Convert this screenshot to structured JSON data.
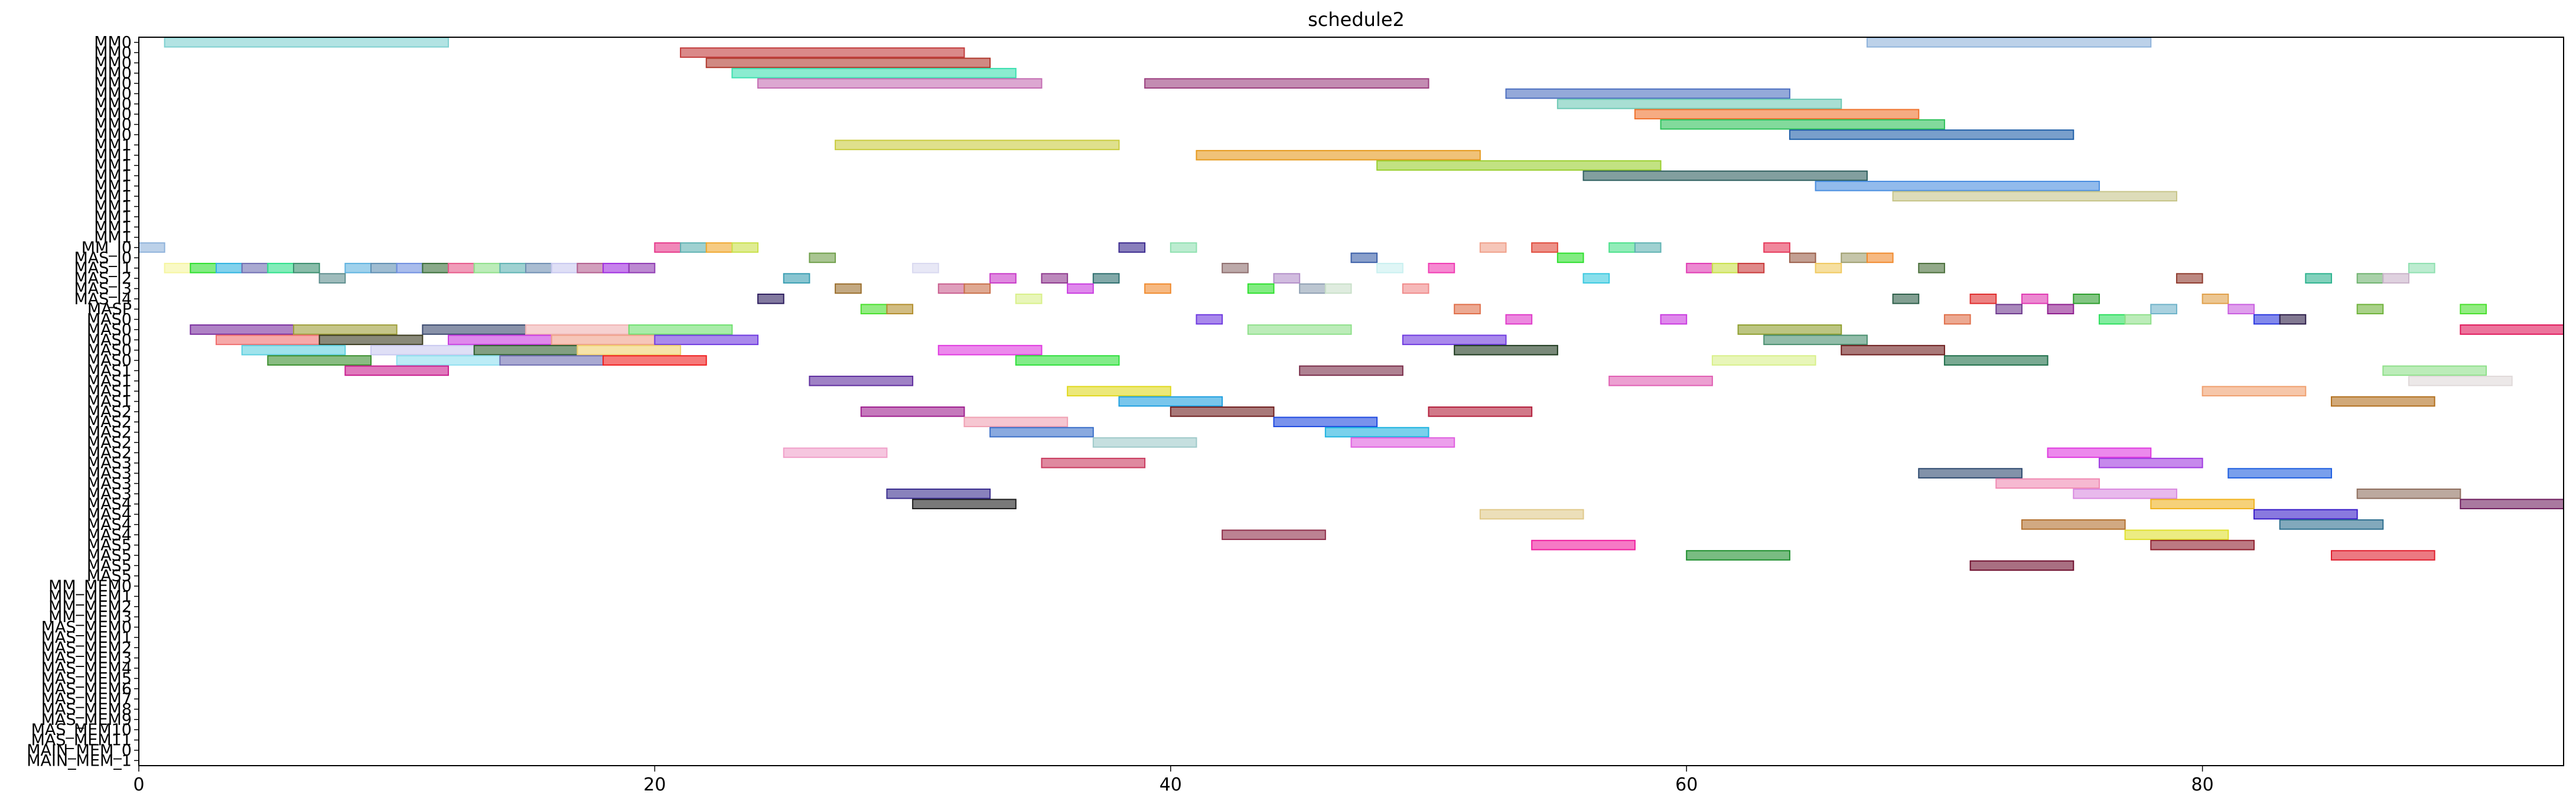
{
  "chart_data": {
    "type": "gantt",
    "title": "schedule2",
    "xlim": [
      0,
      94
    ],
    "xticks": [
      0,
      20,
      40,
      60,
      80
    ],
    "grid": false,
    "rows": [
      "MM0",
      "MM0",
      "MM0",
      "MM0",
      "MM0",
      "MM0",
      "MM0",
      "MM0",
      "MM0",
      "MM0",
      "MM1",
      "MM1",
      "MM1",
      "MM1",
      "MM1",
      "MM1",
      "MM1",
      "MM1",
      "MM1",
      "MM1",
      "MM_I0",
      "MAS_I0",
      "MAS_I1",
      "MAS_I2",
      "MAS_I3",
      "MAS_I4",
      "MASP",
      "MAS0",
      "MAS0",
      "MAS0",
      "MAS0",
      "MAS0",
      "MAS1",
      "MAS1",
      "MAS1",
      "MAS1",
      "MAS2",
      "MAS2",
      "MAS2",
      "MAS2",
      "MAS2",
      "MAS3",
      "MAS3",
      "MAS3",
      "MAS3",
      "MAS4",
      "MAS4",
      "MAS4",
      "MAS4",
      "MAS5",
      "MAS5",
      "MAS5",
      "MAS5",
      "MM_MEM0",
      "MM_MEM1",
      "MM_MEM2",
      "MM_MEM3",
      "MAS_MEM0",
      "MAS_MEM1",
      "MAS_MEM2",
      "MAS_MEM3",
      "MAS_MEM4",
      "MAS_MEM5",
      "MAS_MEM6",
      "MAS_MEM7",
      "MAS_MEM8",
      "MAS_MEM9",
      "MAS_MEM10",
      "MAS_MEM11",
      "MAIN_MEM_0",
      "MAIN_MEM_1"
    ],
    "tasks": [
      {
        "row": 0,
        "start": 1,
        "end": 12,
        "color": "#7fd0d0"
      },
      {
        "row": 0,
        "start": 67,
        "end": 78,
        "color": "#8fb3db"
      },
      {
        "row": 1,
        "start": 21,
        "end": 32,
        "color": "#c23b3b"
      },
      {
        "row": 2,
        "start": 22,
        "end": 33,
        "color": "#b03a2e"
      },
      {
        "row": 3,
        "start": 23,
        "end": 34,
        "color": "#3de0b0"
      },
      {
        "row": 4,
        "start": 24,
        "end": 35,
        "color": "#c46db3"
      },
      {
        "row": 4,
        "start": 39,
        "end": 50,
        "color": "#9b3f7f"
      },
      {
        "row": 5,
        "start": 53,
        "end": 64,
        "color": "#4d6fc0"
      },
      {
        "row": 6,
        "start": 55,
        "end": 66,
        "color": "#6ec9b5"
      },
      {
        "row": 7,
        "start": 58,
        "end": 69,
        "color": "#f0732e"
      },
      {
        "row": 8,
        "start": 59,
        "end": 70,
        "color": "#2ec25a"
      },
      {
        "row": 9,
        "start": 64,
        "end": 75,
        "color": "#1f5fa8"
      },
      {
        "row": 10,
        "start": 27,
        "end": 38,
        "color": "#c9cc3f"
      },
      {
        "row": 11,
        "start": 41,
        "end": 52,
        "color": "#e69a1e"
      },
      {
        "row": 12,
        "start": 48,
        "end": 59,
        "color": "#9acf2e"
      },
      {
        "row": 13,
        "start": 56,
        "end": 67,
        "color": "#2f5f5f"
      },
      {
        "row": 14,
        "start": 65,
        "end": 76,
        "color": "#4a8ee0"
      },
      {
        "row": 15,
        "start": 68,
        "end": 79,
        "color": "#c7c58a"
      },
      {
        "row": 20,
        "start": 0,
        "end": 1,
        "color": "#8fb3db"
      },
      {
        "row": 20,
        "start": 20,
        "end": 21,
        "color": "#e6388a"
      },
      {
        "row": 20,
        "start": 21,
        "end": 22,
        "color": "#5fb3b3"
      },
      {
        "row": 20,
        "start": 22,
        "end": 23,
        "color": "#f0a830"
      },
      {
        "row": 20,
        "start": 23,
        "end": 24,
        "color": "#c9e04a"
      },
      {
        "row": 20,
        "start": 38,
        "end": 39,
        "color": "#3b2a8f"
      },
      {
        "row": 20,
        "start": 40,
        "end": 41,
        "color": "#8fe0b0"
      },
      {
        "row": 20,
        "start": 52,
        "end": 53,
        "color": "#f0a08a"
      },
      {
        "row": 20,
        "start": 54,
        "end": 55,
        "color": "#e04a3b"
      },
      {
        "row": 20,
        "start": 57,
        "end": 58,
        "color": "#4ae08a"
      },
      {
        "row": 20,
        "start": 58,
        "end": 59,
        "color": "#5fb3b3"
      },
      {
        "row": 20,
        "start": 63,
        "end": 64,
        "color": "#e6385a"
      },
      {
        "row": 21,
        "start": 26,
        "end": 27,
        "color": "#6f9f4a"
      },
      {
        "row": 21,
        "start": 47,
        "end": 48,
        "color": "#3b5fa8"
      },
      {
        "row": 21,
        "start": 55,
        "end": 56,
        "color": "#2ee02e"
      },
      {
        "row": 21,
        "start": 64,
        "end": 65,
        "color": "#9b5f4a"
      },
      {
        "row": 21,
        "start": 66,
        "end": 67,
        "color": "#9f9f6f"
      },
      {
        "row": 21,
        "start": 67,
        "end": 68,
        "color": "#f08a2e"
      },
      {
        "row": 22,
        "start": 1,
        "end": 2,
        "color": "#f5f59f"
      },
      {
        "row": 22,
        "start": 2,
        "end": 3,
        "color": "#2ee02e"
      },
      {
        "row": 22,
        "start": 3,
        "end": 4,
        "color": "#2eb3e0"
      },
      {
        "row": 22,
        "start": 4,
        "end": 5,
        "color": "#6f6fb3"
      },
      {
        "row": 22,
        "start": 5,
        "end": 6,
        "color": "#2ee08a"
      },
      {
        "row": 22,
        "start": 6,
        "end": 7,
        "color": "#3b8f6f"
      },
      {
        "row": 22,
        "start": 8,
        "end": 9,
        "color": "#5fb3e0"
      },
      {
        "row": 22,
        "start": 9,
        "end": 10,
        "color": "#5f8fb3"
      },
      {
        "row": 22,
        "start": 10,
        "end": 11,
        "color": "#6f8fe0"
      },
      {
        "row": 22,
        "start": 11,
        "end": 12,
        "color": "#3b6f3b"
      },
      {
        "row": 22,
        "start": 12,
        "end": 13,
        "color": "#e65a8a"
      },
      {
        "row": 22,
        "start": 13,
        "end": 14,
        "color": "#8fe08a"
      },
      {
        "row": 22,
        "start": 14,
        "end": 15,
        "color": "#5fb3b3"
      },
      {
        "row": 22,
        "start": 15,
        "end": 16,
        "color": "#6f8fb3"
      },
      {
        "row": 22,
        "start": 16,
        "end": 17,
        "color": "#c9c9f0"
      },
      {
        "row": 22,
        "start": 17,
        "end": 18,
        "color": "#b35f8f"
      },
      {
        "row": 22,
        "start": 18,
        "end": 19,
        "color": "#a02ee0"
      },
      {
        "row": 22,
        "start": 19,
        "end": 20,
        "color": "#8f3bb3"
      },
      {
        "row": 22,
        "start": 30,
        "end": 31,
        "color": "#d9d9f0"
      },
      {
        "row": 22,
        "start": 42,
        "end": 43,
        "color": "#8f6f6f"
      },
      {
        "row": 22,
        "start": 48,
        "end": 49,
        "color": "#c9f0f0"
      },
      {
        "row": 22,
        "start": 50,
        "end": 51,
        "color": "#f03bb3"
      },
      {
        "row": 22,
        "start": 60,
        "end": 61,
        "color": "#e03bb3"
      },
      {
        "row": 22,
        "start": 61,
        "end": 62,
        "color": "#c9e04a"
      },
      {
        "row": 22,
        "start": 62,
        "end": 63,
        "color": "#c93b3b"
      },
      {
        "row": 22,
        "start": 65,
        "end": 66,
        "color": "#f0c95f"
      },
      {
        "row": 22,
        "start": 69,
        "end": 70,
        "color": "#4a6f3b"
      },
      {
        "row": 22,
        "start": 88,
        "end": 89,
        "color": "#8fe0b0"
      },
      {
        "row": 23,
        "start": 7,
        "end": 8,
        "color": "#5f8f8f"
      },
      {
        "row": 23,
        "start": 25,
        "end": 26,
        "color": "#3b9fb3"
      },
      {
        "row": 23,
        "start": 33,
        "end": 34,
        "color": "#c93bc9"
      },
      {
        "row": 23,
        "start": 35,
        "end": 36,
        "color": "#8f3b8f"
      },
      {
        "row": 23,
        "start": 37,
        "end": 38,
        "color": "#2e6f6f"
      },
      {
        "row": 23,
        "start": 44,
        "end": 45,
        "color": "#b38fc9"
      },
      {
        "row": 23,
        "start": 56,
        "end": 57,
        "color": "#3bc9e0"
      },
      {
        "row": 23,
        "start": 79,
        "end": 80,
        "color": "#8f3b2e"
      },
      {
        "row": 23,
        "start": 84,
        "end": 85,
        "color": "#2eb38f"
      },
      {
        "row": 23,
        "start": 86,
        "end": 87,
        "color": "#6fb36f"
      },
      {
        "row": 23,
        "start": 87,
        "end": 88,
        "color": "#c9b3c9"
      },
      {
        "row": 24,
        "start": 27,
        "end": 28,
        "color": "#9b6f2e"
      },
      {
        "row": 24,
        "start": 31,
        "end": 32,
        "color": "#c95f8f"
      },
      {
        "row": 24,
        "start": 32,
        "end": 33,
        "color": "#c96f4a"
      },
      {
        "row": 24,
        "start": 36,
        "end": 37,
        "color": "#c93be0"
      },
      {
        "row": 24,
        "start": 39,
        "end": 40,
        "color": "#f08a2e"
      },
      {
        "row": 24,
        "start": 43,
        "end": 44,
        "color": "#2ee02e"
      },
      {
        "row": 24,
        "start": 45,
        "end": 46,
        "color": "#8fa0b3"
      },
      {
        "row": 24,
        "start": 46,
        "end": 47,
        "color": "#c9e0c9"
      },
      {
        "row": 24,
        "start": 49,
        "end": 50,
        "color": "#f08a8a"
      },
      {
        "row": 25,
        "start": 24,
        "end": 25,
        "color": "#2e1f5f"
      },
      {
        "row": 25,
        "start": 34,
        "end": 35,
        "color": "#d9f08a"
      },
      {
        "row": 25,
        "start": 68,
        "end": 69,
        "color": "#2e5f4a"
      },
      {
        "row": 25,
        "start": 71,
        "end": 72,
        "color": "#e02e2e"
      },
      {
        "row": 25,
        "start": 73,
        "end": 74,
        "color": "#e03bb3"
      },
      {
        "row": 25,
        "start": 75,
        "end": 76,
        "color": "#2e9f2e"
      },
      {
        "row": 25,
        "start": 80,
        "end": 81,
        "color": "#e0a04a"
      },
      {
        "row": 26,
        "start": 28,
        "end": 29,
        "color": "#4ae02e"
      },
      {
        "row": 26,
        "start": 29,
        "end": 30,
        "color": "#b38f2e"
      },
      {
        "row": 26,
        "start": 51,
        "end": 52,
        "color": "#e06f4a"
      },
      {
        "row": 26,
        "start": 72,
        "end": 73,
        "color": "#6f3b8f"
      },
      {
        "row": 26,
        "start": 74,
        "end": 75,
        "color": "#8f1f8f"
      },
      {
        "row": 26,
        "start": 78,
        "end": 79,
        "color": "#6fb3c9"
      },
      {
        "row": 26,
        "start": 81,
        "end": 82,
        "color": "#c95fe0"
      },
      {
        "row": 26,
        "start": 86,
        "end": 87,
        "color": "#6fb33b"
      },
      {
        "row": 26,
        "start": 90,
        "end": 91,
        "color": "#4ae02e"
      },
      {
        "row": 27,
        "start": 41,
        "end": 42,
        "color": "#6f3be0"
      },
      {
        "row": 27,
        "start": 53,
        "end": 54,
        "color": "#e03bc9"
      },
      {
        "row": 27,
        "start": 59,
        "end": 60,
        "color": "#c93be0"
      },
      {
        "row": 27,
        "start": 70,
        "end": 71,
        "color": "#e06f4a"
      },
      {
        "row": 27,
        "start": 76,
        "end": 77,
        "color": "#2ee05f"
      },
      {
        "row": 27,
        "start": 77,
        "end": 78,
        "color": "#8fe08a"
      },
      {
        "row": 27,
        "start": 82,
        "end": 83,
        "color": "#2e3be0"
      },
      {
        "row": 27,
        "start": 83,
        "end": 84,
        "color": "#2e1f4a"
      },
      {
        "row": 28,
        "start": 2,
        "end": 6,
        "color": "#7a2e9f"
      },
      {
        "row": 28,
        "start": 6,
        "end": 10,
        "color": "#9f9f3b"
      },
      {
        "row": 28,
        "start": 11,
        "end": 15,
        "color": "#3b4a6f"
      },
      {
        "row": 28,
        "start": 15,
        "end": 19,
        "color": "#f0b3b3"
      },
      {
        "row": 28,
        "start": 19,
        "end": 23,
        "color": "#6fe06f"
      },
      {
        "row": 28,
        "start": 43,
        "end": 47,
        "color": "#8fe08a"
      },
      {
        "row": 28,
        "start": 62,
        "end": 66,
        "color": "#8f9f2e"
      },
      {
        "row": 28,
        "start": 90,
        "end": 94,
        "color": "#e0185a"
      },
      {
        "row": 29,
        "start": 3,
        "end": 7,
        "color": "#f06f6f"
      },
      {
        "row": 29,
        "start": 7,
        "end": 11,
        "color": "#3b3b1f"
      },
      {
        "row": 29,
        "start": 12,
        "end": 16,
        "color": "#c93be0"
      },
      {
        "row": 29,
        "start": 16,
        "end": 20,
        "color": "#f0a08a"
      },
      {
        "row": 29,
        "start": 20,
        "end": 24,
        "color": "#6f3be0"
      },
      {
        "row": 29,
        "start": 49,
        "end": 53,
        "color": "#6f3be0"
      },
      {
        "row": 29,
        "start": 63,
        "end": 67,
        "color": "#4a8f6f"
      },
      {
        "row": 30,
        "start": 4,
        "end": 8,
        "color": "#5fd0e0"
      },
      {
        "row": 30,
        "start": 9,
        "end": 13,
        "color": "#c9c9f0"
      },
      {
        "row": 30,
        "start": 13,
        "end": 17,
        "color": "#2e5f2e"
      },
      {
        "row": 30,
        "start": 17,
        "end": 21,
        "color": "#f0d06f"
      },
      {
        "row": 30,
        "start": 31,
        "end": 35,
        "color": "#e03be0"
      },
      {
        "row": 30,
        "start": 51,
        "end": 55,
        "color": "#1f3b1f"
      },
      {
        "row": 30,
        "start": 66,
        "end": 70,
        "color": "#6f1f1f"
      },
      {
        "row": 31,
        "start": 5,
        "end": 9,
        "color": "#3b8f2e"
      },
      {
        "row": 31,
        "start": 10,
        "end": 14,
        "color": "#8fe0f0"
      },
      {
        "row": 31,
        "start": 14,
        "end": 18,
        "color": "#6f6fb3"
      },
      {
        "row": 31,
        "start": 18,
        "end": 22,
        "color": "#f01f1f"
      },
      {
        "row": 31,
        "start": 34,
        "end": 38,
        "color": "#2ee03b"
      },
      {
        "row": 31,
        "start": 61,
        "end": 65,
        "color": "#d9f08a"
      },
      {
        "row": 31,
        "start": 70,
        "end": 74,
        "color": "#1f6f4a"
      },
      {
        "row": 32,
        "start": 8,
        "end": 12,
        "color": "#c91f8f"
      },
      {
        "row": 32,
        "start": 45,
        "end": 49,
        "color": "#7a2e4a"
      },
      {
        "row": 32,
        "start": 87,
        "end": 91,
        "color": "#8fe08a"
      },
      {
        "row": 33,
        "start": 26,
        "end": 30,
        "color": "#5f2e9f"
      },
      {
        "row": 33,
        "start": 57,
        "end": 61,
        "color": "#e05fb3"
      },
      {
        "row": 33,
        "start": 88,
        "end": 92,
        "color": "#e0d9d9"
      },
      {
        "row": 34,
        "start": 36,
        "end": 40,
        "color": "#e0d91f"
      },
      {
        "row": 34,
        "start": 80,
        "end": 84,
        "color": "#f0a06f"
      },
      {
        "row": 35,
        "start": 38,
        "end": 42,
        "color": "#1fa0e0"
      },
      {
        "row": 35,
        "start": 85,
        "end": 89,
        "color": "#b3701f"
      },
      {
        "row": 36,
        "start": 28,
        "end": 32,
        "color": "#9f1f8f"
      },
      {
        "row": 36,
        "start": 40,
        "end": 44,
        "color": "#6f1f1f"
      },
      {
        "row": 36,
        "start": 50,
        "end": 54,
        "color": "#b31f3b"
      },
      {
        "row": 37,
        "start": 32,
        "end": 36,
        "color": "#f0a0b3"
      },
      {
        "row": 37,
        "start": 44,
        "end": 48,
        "color": "#1f4ae0"
      },
      {
        "row": 38,
        "start": 33,
        "end": 37,
        "color": "#3b6fc9"
      },
      {
        "row": 38,
        "start": 46,
        "end": 50,
        "color": "#1fb3e0"
      },
      {
        "row": 39,
        "start": 37,
        "end": 41,
        "color": "#9fc9c9"
      },
      {
        "row": 39,
        "start": 47,
        "end": 51,
        "color": "#e05fe0"
      },
      {
        "row": 40,
        "start": 25,
        "end": 29,
        "color": "#f0a0c9"
      },
      {
        "row": 40,
        "start": 74,
        "end": 78,
        "color": "#e03be0"
      },
      {
        "row": 41,
        "start": 35,
        "end": 39,
        "color": "#c93b5f"
      },
      {
        "row": 41,
        "start": 76,
        "end": 80,
        "color": "#a03be0"
      },
      {
        "row": 42,
        "start": 69,
        "end": 73,
        "color": "#2e4a6f"
      },
      {
        "row": 42,
        "start": 81,
        "end": 85,
        "color": "#1f5fe0"
      },
      {
        "row": 43,
        "start": 72,
        "end": 76,
        "color": "#f08ab3"
      },
      {
        "row": 44,
        "start": 29,
        "end": 33,
        "color": "#3b2e8f"
      },
      {
        "row": 44,
        "start": 75,
        "end": 79,
        "color": "#d98ae0"
      },
      {
        "row": 44,
        "start": 86,
        "end": 90,
        "color": "#8f6f5f"
      },
      {
        "row": 45,
        "start": 30,
        "end": 34,
        "color": "#1f1f1f"
      },
      {
        "row": 45,
        "start": 78,
        "end": 82,
        "color": "#f0b31f"
      },
      {
        "row": 45,
        "start": 90,
        "end": 94,
        "color": "#6f1f5f"
      },
      {
        "row": 46,
        "start": 52,
        "end": 56,
        "color": "#e0c98a"
      },
      {
        "row": 46,
        "start": 82,
        "end": 86,
        "color": "#3b1fc9"
      },
      {
        "row": 47,
        "start": 73,
        "end": 77,
        "color": "#b3702e"
      },
      {
        "row": 47,
        "start": 83,
        "end": 87,
        "color": "#2e6f8f"
      },
      {
        "row": 48,
        "start": 42,
        "end": 46,
        "color": "#8f2e4a"
      },
      {
        "row": 48,
        "start": 77,
        "end": 81,
        "color": "#e0e02e"
      },
      {
        "row": 49,
        "start": 54,
        "end": 58,
        "color": "#f01f9f"
      },
      {
        "row": 49,
        "start": 78,
        "end": 82,
        "color": "#8f1f2e"
      },
      {
        "row": 50,
        "start": 60,
        "end": 64,
        "color": "#1f8f2e"
      },
      {
        "row": 50,
        "start": 85,
        "end": 89,
        "color": "#e01f2e"
      },
      {
        "row": 51,
        "start": 71,
        "end": 75,
        "color": "#6f0f2e"
      }
    ]
  }
}
